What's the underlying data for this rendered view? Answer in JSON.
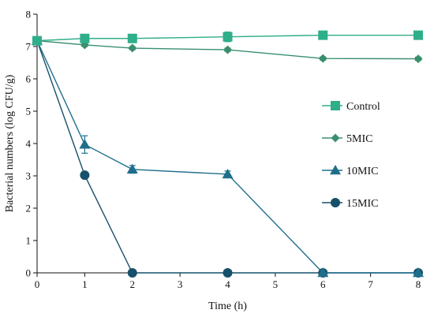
{
  "chart_data": {
    "type": "line",
    "title": "",
    "xlabel": "Time (h)",
    "ylabel": "Bacterial numbers (log CFU/g)",
    "xlim": [
      0,
      8
    ],
    "ylim": [
      0,
      8
    ],
    "xticks": [
      "0",
      "1",
      "2",
      "3",
      "4",
      "5",
      "6",
      "7",
      "8"
    ],
    "yticks": [
      "0",
      "1",
      "2",
      "3",
      "4",
      "5",
      "6",
      "7",
      "8"
    ],
    "grid": false,
    "legend_position": "right",
    "series": [
      {
        "name": "Control",
        "marker": "square",
        "color": "#2fae8a",
        "x": [
          0,
          1,
          2,
          4,
          6,
          8
        ],
        "y": [
          7.18,
          7.25,
          7.25,
          7.3,
          7.35,
          7.35
        ],
        "err": [
          0.08,
          0.12,
          0.08,
          0.15,
          0.05,
          0.05
        ]
      },
      {
        "name": "5MIC",
        "marker": "diamond",
        "color": "#3a8f6e",
        "x": [
          0,
          1,
          2,
          4,
          6,
          8
        ],
        "y": [
          7.18,
          7.05,
          6.95,
          6.9,
          6.63,
          6.62
        ],
        "err": [
          0.1,
          0.05,
          0.05,
          0.05,
          0.05,
          0.05
        ]
      },
      {
        "name": "10MIC",
        "marker": "triangle",
        "color": "#1f6f8b",
        "x": [
          0,
          1,
          2,
          4,
          6,
          8
        ],
        "y": [
          7.18,
          3.97,
          3.2,
          3.05,
          0,
          0
        ],
        "err": [
          0.1,
          0.27,
          0.12,
          0.1,
          0,
          0
        ]
      },
      {
        "name": "15MIC",
        "marker": "circle",
        "color": "#17506a",
        "x": [
          0,
          1,
          2,
          4,
          6,
          8
        ],
        "y": [
          7.18,
          3.02,
          0,
          0,
          0,
          0
        ],
        "err": [
          0.08,
          0.05,
          0,
          0,
          0,
          0
        ]
      }
    ]
  }
}
